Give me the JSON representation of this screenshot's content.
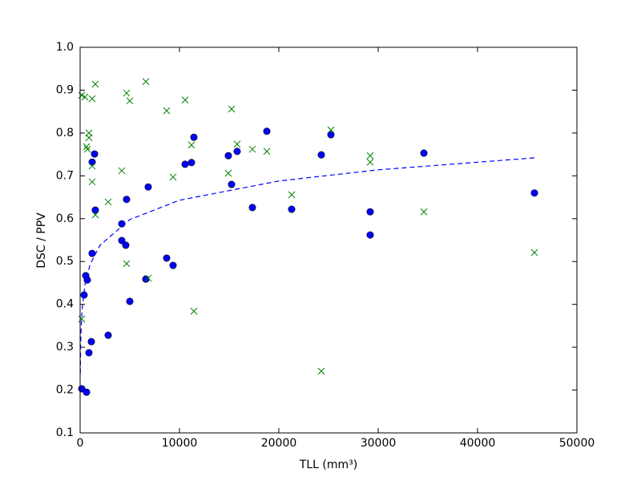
{
  "chart_data": {
    "type": "scatter",
    "xlabel": "TLL (mm³)",
    "ylabel": "DSC / PPV",
    "xlim": [
      0,
      50000
    ],
    "ylim": [
      0.1,
      1.0
    ],
    "xticks": [
      0,
      10000,
      20000,
      30000,
      40000,
      50000
    ],
    "yticks": [
      0.1,
      0.2,
      0.3,
      0.4,
      0.5,
      0.6,
      0.7,
      0.8,
      0.9,
      {
        "value": 1.0,
        "label": "1.0"
      }
    ],
    "grid": false,
    "series": [
      {
        "color": "#0000ff",
        "marker": "circle",
        "x": [
          161,
          645,
          403,
          565,
          726,
          887,
          1129,
          1210,
          1210,
          1452,
          1532,
          2823,
          4194,
          4194,
          4597,
          4677,
          5000,
          6613,
          6855,
          8710,
          9355,
          10565,
          11210,
          11452,
          14919,
          15242,
          15806,
          17339,
          18790,
          21290,
          24274,
          25242,
          29194,
          29194,
          34597,
          45726
        ],
        "values": [
          0.203,
          0.195,
          0.422,
          0.467,
          0.457,
          0.287,
          0.313,
          0.519,
          0.732,
          0.751,
          0.62,
          0.328,
          0.588,
          0.549,
          0.538,
          0.645,
          0.407,
          0.459,
          0.674,
          0.508,
          0.491,
          0.727,
          0.731,
          0.79,
          0.747,
          0.68,
          0.757,
          0.626,
          0.804,
          0.622,
          0.749,
          0.796,
          0.616,
          0.562,
          0.753,
          0.66
        ]
      },
      {
        "color": "#008000",
        "marker": "cross",
        "x": [
          161,
          161,
          484,
          645,
          726,
          887,
          887,
          1210,
          1210,
          1210,
          1532,
          1532,
          2823,
          4194,
          4677,
          4677,
          5000,
          6613,
          6855,
          8710,
          9355,
          10565,
          11210,
          11452,
          14919,
          15242,
          15806,
          17339,
          18790,
          21290,
          24274,
          25242,
          29194,
          29194,
          34597,
          45726
        ],
        "values": [
          0.888,
          0.366,
          0.884,
          0.768,
          0.762,
          0.8,
          0.789,
          0.88,
          0.723,
          0.686,
          0.914,
          0.609,
          0.639,
          0.712,
          0.893,
          0.495,
          0.875,
          0.92,
          0.461,
          0.852,
          0.697,
          0.877,
          0.772,
          0.384,
          0.706,
          0.856,
          0.774,
          0.762,
          0.757,
          0.656,
          0.244,
          0.807,
          0.747,
          0.732,
          0.616,
          0.521
        ]
      },
      {
        "color": "#0000ff",
        "marker": "dashed-line",
        "x": [
          20,
          50,
          100,
          200,
          500,
          1000,
          2000,
          5000,
          10000,
          20000,
          30000,
          45726
        ],
        "values": [
          0.239,
          0.298,
          0.343,
          0.388,
          0.448,
          0.493,
          0.538,
          0.598,
          0.643,
          0.688,
          0.714,
          0.742
        ]
      }
    ]
  }
}
